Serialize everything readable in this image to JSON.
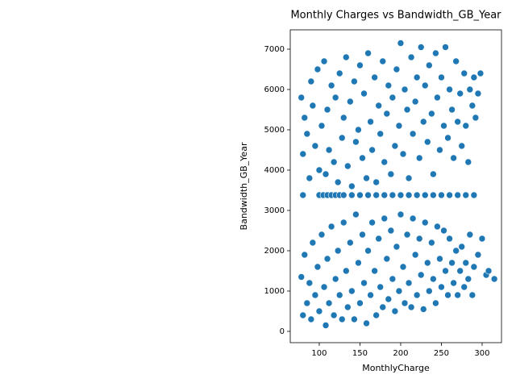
{
  "chart_data": {
    "type": "scatter",
    "title": "Monthly Charges vs Bandwidth_GB_Year",
    "x_label": "MonthlyCharge",
    "y_label": "Bandwidth_GB_Year",
    "color": "#1f77b4",
    "grid": false,
    "xlim": [
      64.4,
      323.8
    ],
    "ylim": [
      -280,
      7480
    ],
    "xticks": [
      100,
      150,
      200,
      250,
      300
    ],
    "yticks": [
      0,
      1000,
      2000,
      3000,
      4000,
      5000,
      6000,
      7000
    ],
    "x": [
      80,
      100,
      105,
      110,
      115,
      120,
      125,
      130,
      140,
      150,
      160,
      170,
      180,
      190,
      200,
      210,
      220,
      230,
      240,
      250,
      260,
      270,
      280,
      290,
      78,
      80,
      82,
      85,
      88,
      90,
      92,
      95,
      98,
      100,
      103,
      106,
      108,
      110,
      112,
      115,
      118,
      120,
      123,
      125,
      128,
      130,
      133,
      135,
      138,
      140,
      143,
      145,
      148,
      150,
      153,
      155,
      158,
      160,
      163,
      165,
      168,
      170,
      173,
      175,
      178,
      180,
      183,
      185,
      188,
      190,
      193,
      195,
      198,
      200,
      203,
      205,
      208,
      210,
      213,
      215,
      218,
      220,
      223,
      225,
      228,
      230,
      233,
      235,
      238,
      240,
      243,
      245,
      248,
      250,
      253,
      255,
      258,
      260,
      263,
      265,
      268,
      270,
      273,
      275,
      278,
      280,
      283,
      285,
      288,
      290,
      292,
      295,
      298,
      78,
      80,
      82,
      85,
      88,
      90,
      92,
      95,
      98,
      100,
      103,
      106,
      108,
      110,
      112,
      115,
      118,
      120,
      123,
      125,
      128,
      130,
      133,
      135,
      138,
      140,
      143,
      145,
      148,
      150,
      153,
      155,
      158,
      160,
      163,
      165,
      168,
      170,
      173,
      175,
      178,
      180,
      183,
      185,
      188,
      190,
      193,
      195,
      198,
      200,
      203,
      205,
      208,
      210,
      213,
      215,
      218,
      220,
      223,
      225,
      228,
      230,
      233,
      235,
      238,
      240,
      243,
      245,
      248,
      250,
      253,
      255,
      258,
      260,
      263,
      265,
      268,
      270,
      273,
      275,
      278,
      280,
      283,
      285,
      288,
      290,
      295,
      300,
      305,
      308,
      315
    ],
    "values": [
      3380,
      3380,
      3380,
      3380,
      3380,
      3380,
      3380,
      3380,
      3380,
      3380,
      3380,
      3380,
      3380,
      3380,
      3380,
      3380,
      3380,
      3380,
      3380,
      3380,
      3380,
      3380,
      3380,
      3380,
      5800,
      4400,
      5300,
      4900,
      3800,
      6200,
      5600,
      4600,
      6500,
      4000,
      5100,
      6700,
      3900,
      5500,
      4500,
      6100,
      4200,
      5800,
      3700,
      6400,
      4800,
      5300,
      6800,
      4100,
      5700,
      3600,
      6200,
      4700,
      5000,
      6600,
      4300,
      5900,
      3800,
      6900,
      5200,
      4500,
      6300,
      3700,
      5600,
      4900,
      6700,
      4200,
      5400,
      6100,
      3900,
      5800,
      4600,
      6500,
      5100,
      7150,
      4400,
      6000,
      5500,
      3800,
      6800,
      4900,
      5700,
      6300,
      4300,
      7050,
      5200,
      6100,
      4700,
      6600,
      5400,
      3900,
      6900,
      5800,
      4500,
      6300,
      5100,
      7050,
      4800,
      6000,
      5500,
      4300,
      6700,
      5200,
      5900,
      4600,
      6400,
      5100,
      4200,
      6000,
      5600,
      6300,
      5300,
      5900,
      6400,
      1350,
      400,
      1900,
      700,
      1200,
      300,
      2200,
      900,
      1600,
      500,
      2400,
      1100,
      150,
      1800,
      700,
      2600,
      400,
      1300,
      2000,
      900,
      300,
      2700,
      1500,
      600,
      2200,
      1000,
      300,
      2900,
      1700,
      700,
      2400,
      1200,
      200,
      2000,
      900,
      2700,
      1500,
      400,
      2300,
      1100,
      600,
      2800,
      1800,
      800,
      2500,
      1300,
      500,
      2100,
      1000,
      2900,
      1600,
      700,
      2400,
      1200,
      600,
      2800,
      1900,
      900,
      2300,
      1400,
      550,
      2700,
      1700,
      1000,
      2200,
      1300,
      700,
      2600,
      1800,
      1100,
      2500,
      1500,
      900,
      2300,
      1700,
      1200,
      2000,
      900,
      1500,
      2100,
      1100,
      1700,
      1300,
      2400,
      900,
      1600,
      1900,
      2300,
      1400,
      1500,
      1300
    ]
  }
}
